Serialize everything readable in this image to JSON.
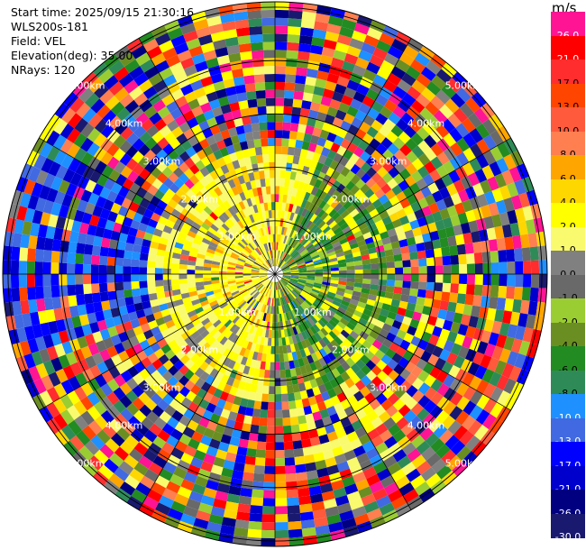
{
  "header": {
    "start_time": "Start time: 2025/09/15 21:30:16",
    "instrument": "WLS200s-181",
    "field": "Field: VEL",
    "elevation": "Elevation(deg): 35.00",
    "nrays": "NRays: 120"
  },
  "colorbar": {
    "unit": "m/s",
    "levels": [
      {
        "label": "26.0",
        "color": "#ff1493"
      },
      {
        "label": "21.0",
        "color": "#ff0000"
      },
      {
        "label": "17.0",
        "color": "#ff2d2d"
      },
      {
        "label": "13.0",
        "color": "#ff4500"
      },
      {
        "label": "10.0",
        "color": "#ff5a3c"
      },
      {
        "label": "8.0",
        "color": "#ff7f50"
      },
      {
        "label": "6.0",
        "color": "#ffa500"
      },
      {
        "label": "4.0",
        "color": "#ffd700"
      },
      {
        "label": "2.0",
        "color": "#ffff00"
      },
      {
        "label": "1.0",
        "color": "#fafa6e"
      },
      {
        "label": "0.0",
        "color": "#808080"
      },
      {
        "label": "-1.0",
        "color": "#696969"
      },
      {
        "label": "-2.0",
        "color": "#9acd32"
      },
      {
        "label": "-4.0",
        "color": "#6b8e23"
      },
      {
        "label": "-6.0",
        "color": "#228b22"
      },
      {
        "label": "-8.0",
        "color": "#2e8b57"
      },
      {
        "label": "-10.0",
        "color": "#1e90ff"
      },
      {
        "label": "-13.0",
        "color": "#4169e1"
      },
      {
        "label": "-17.0",
        "color": "#0000ff"
      },
      {
        "label": "-21.0",
        "color": "#0000cd"
      },
      {
        "label": "-26.0",
        "color": "#000080"
      },
      {
        "label": "-30.0",
        "color": "#191970"
      }
    ]
  },
  "chart_data": {
    "type": "heatmap",
    "field": "VEL",
    "unit": "m/s",
    "elevation_deg": 35.0,
    "n_rays": 120,
    "max_range_km": 5.1,
    "range_ring_labels": [
      "1.00km",
      "2.00km",
      "3.00km",
      "4.00km",
      "5.00km"
    ],
    "range_rings_km": [
      1,
      2,
      3,
      4,
      5
    ],
    "value_range": [
      -30.0,
      30.0
    ],
    "pattern": "near field (< 2 km): positive velocities (yellow/orange, 1–8 m/s) toward the west-north, negative (green/olive, -1 to -8 m/s) toward the south-east; beyond ~2.5 km values are noisy across the full colour scale with blue (-13 to -21 m/s) dominating the far west sector"
  }
}
